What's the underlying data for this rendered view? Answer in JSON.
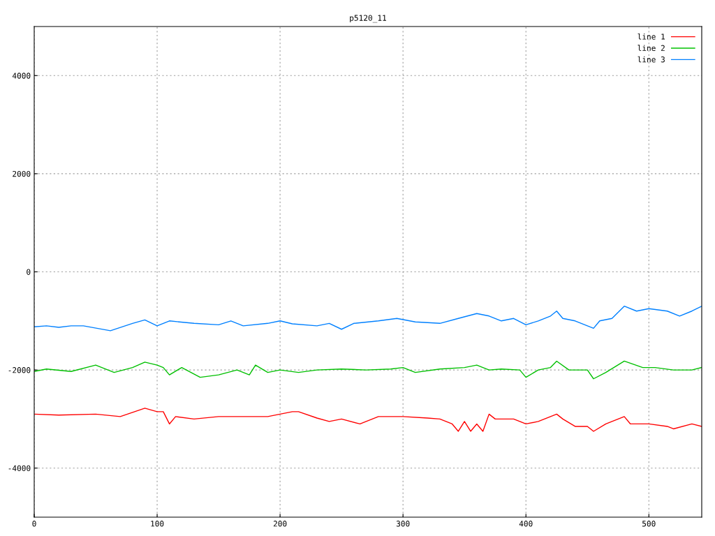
{
  "chart_data": {
    "type": "line",
    "title": "p5120_11",
    "xlim": [
      0,
      543
    ],
    "ylim": [
      -5000,
      5000
    ],
    "xticks": [
      0,
      100,
      200,
      300,
      400,
      500
    ],
    "yticks": [
      {
        "value": -4000,
        "label": "-4000"
      },
      {
        "value": -2000,
        "label": "-2000"
      },
      0,
      2000,
      4000
    ],
    "grid": true,
    "legend": "top right",
    "line_style": "solid",
    "marker": "none",
    "series": [
      {
        "name": "line 1",
        "color": "#ff0000",
        "x": [
          0,
          20,
          50,
          70,
          90,
          100,
          105,
          110,
          115,
          130,
          150,
          170,
          190,
          210,
          215,
          230,
          240,
          250,
          265,
          280,
          300,
          320,
          330,
          340,
          345,
          350,
          355,
          360,
          365,
          370,
          375,
          390,
          400,
          410,
          420,
          425,
          430,
          440,
          450,
          455,
          465,
          480,
          485,
          500,
          515,
          520,
          535,
          543
        ],
        "values": [
          -2900,
          -2920,
          -2900,
          -2950,
          -2780,
          -2850,
          -2850,
          -3100,
          -2950,
          -3000,
          -2950,
          -2950,
          -2950,
          -2850,
          -2850,
          -2980,
          -3050,
          -3000,
          -3100,
          -2950,
          -2950,
          -2980,
          -3000,
          -3100,
          -3250,
          -3050,
          -3250,
          -3100,
          -3250,
          -2900,
          -3000,
          -3000,
          -3100,
          -3050,
          -2950,
          -2900,
          -3000,
          -3150,
          -3150,
          -3250,
          -3100,
          -2950,
          -3100,
          -3100,
          -3150,
          -3200,
          -3100,
          -3150
        ]
      },
      {
        "name": "line 2",
        "color": "#00c000",
        "x": [
          0,
          10,
          30,
          50,
          65,
          80,
          90,
          100,
          105,
          110,
          120,
          135,
          150,
          165,
          175,
          180,
          190,
          200,
          215,
          230,
          250,
          270,
          290,
          300,
          310,
          330,
          350,
          360,
          370,
          380,
          395,
          400,
          410,
          420,
          425,
          435,
          450,
          455,
          465,
          480,
          495,
          505,
          520,
          535,
          543
        ],
        "values": [
          -2030,
          -1980,
          -2030,
          -1900,
          -2050,
          -1950,
          -1840,
          -1900,
          -1950,
          -2100,
          -1950,
          -2150,
          -2100,
          -2000,
          -2100,
          -1900,
          -2050,
          -2000,
          -2050,
          -2000,
          -1980,
          -2000,
          -1980,
          -1950,
          -2050,
          -1980,
          -1950,
          -1900,
          -2000,
          -1980,
          -2000,
          -2150,
          -2000,
          -1950,
          -1820,
          -2000,
          -2000,
          -2180,
          -2050,
          -1820,
          -1950,
          -1950,
          -2000,
          -2000,
          -1950
        ]
      },
      {
        "name": "line 3",
        "color": "#0080ff",
        "x": [
          0,
          10,
          20,
          30,
          40,
          62,
          80,
          90,
          100,
          110,
          130,
          150,
          160,
          170,
          190,
          200,
          210,
          230,
          240,
          250,
          260,
          280,
          295,
          310,
          330,
          345,
          360,
          370,
          380,
          390,
          400,
          410,
          420,
          425,
          430,
          440,
          450,
          455,
          460,
          470,
          480,
          490,
          500,
          515,
          525,
          535,
          543
        ],
        "values": [
          -1120,
          -1100,
          -1130,
          -1100,
          -1100,
          -1200,
          -1050,
          -980,
          -1100,
          -1000,
          -1050,
          -1080,
          -1000,
          -1100,
          -1050,
          -1000,
          -1060,
          -1100,
          -1050,
          -1170,
          -1050,
          -1000,
          -950,
          -1020,
          -1050,
          -950,
          -850,
          -900,
          -1000,
          -950,
          -1080,
          -1000,
          -900,
          -800,
          -950,
          -1000,
          -1100,
          -1150,
          -1000,
          -950,
          -700,
          -800,
          -750,
          -800,
          -900,
          -800,
          -700
        ]
      }
    ]
  }
}
